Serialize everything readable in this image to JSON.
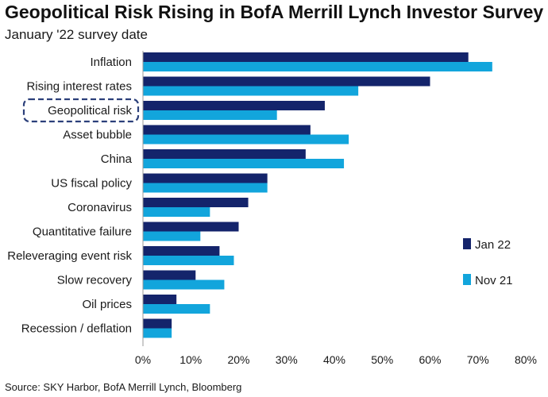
{
  "title": "Geopolitical Risk Rising in BofA Merrill Lynch Investor Survey",
  "subtitle": "January '22 survey date",
  "source": "Source: SKY Harbor, BofA Merrill Lynch, Bloomberg",
  "colors": {
    "jan22": "#14246b",
    "nov21": "#12a5dc",
    "highlight": "#2b3f7a",
    "axis": "#9a9a9a"
  },
  "chart_data": {
    "type": "bar",
    "orientation": "horizontal",
    "title": "Geopolitical Risk Rising in BofA Merrill Lynch Investor Survey",
    "subtitle": "January '22 survey date",
    "categories": [
      "Inflation",
      "Rising interest rates",
      "Geopolitical risk",
      "Asset bubble",
      "China",
      "US fiscal policy",
      "Coronavirus",
      "Quantitative failure",
      "Releveraging event risk",
      "Slow recovery",
      "Oil prices",
      "Recession / deflation"
    ],
    "series": [
      {
        "name": "Jan 22",
        "values": [
          68,
          60,
          38,
          35,
          34,
          26,
          22,
          20,
          16,
          11,
          7,
          6
        ]
      },
      {
        "name": "Nov 21",
        "values": [
          73,
          45,
          28,
          43,
          42,
          26,
          14,
          12,
          19,
          17,
          14,
          6
        ]
      }
    ],
    "xlim": [
      0,
      80
    ],
    "xticks": [
      "0%",
      "10%",
      "20%",
      "30%",
      "40%",
      "50%",
      "60%",
      "70%",
      "80%"
    ],
    "highlight_category": "Geopolitical risk",
    "legend_position": "right",
    "grid": false
  }
}
